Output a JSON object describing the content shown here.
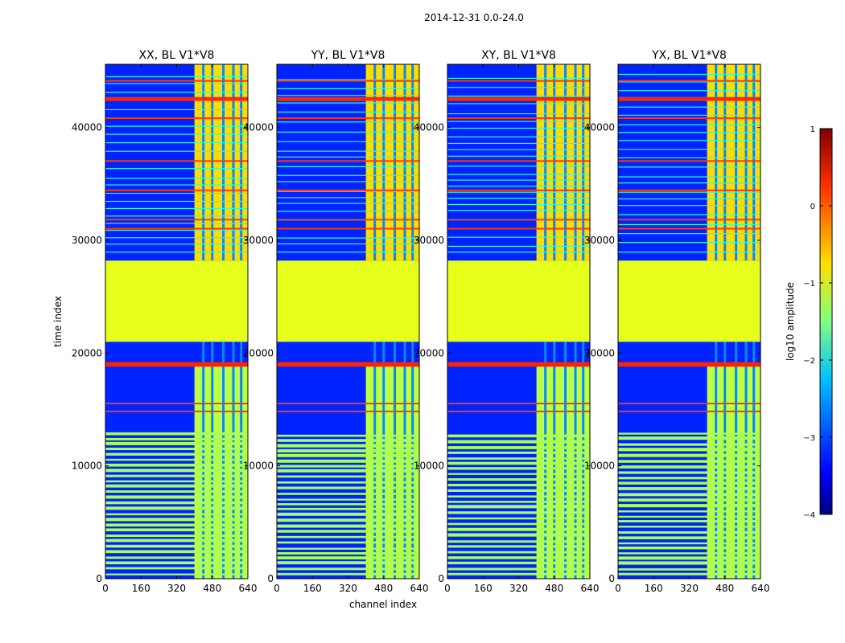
{
  "figure": {
    "suptitle": "2014-12-31 0.0-24.0"
  },
  "chart_data": {
    "type": "heatmap",
    "shared": {
      "xlabel": "channel index",
      "ylabel": "time index",
      "x_ticks": [
        0,
        160,
        320,
        480,
        640
      ],
      "y_ticks": [
        0,
        10000,
        20000,
        30000,
        40000
      ],
      "xlim": [
        0,
        640
      ],
      "ylim": [
        0,
        45600
      ]
    },
    "panels": [
      {
        "title": "XX, BL V1*V8",
        "polarization": "XX"
      },
      {
        "title": "YY, BL V1*V8",
        "polarization": "YY"
      },
      {
        "title": "XY, BL V1*V8",
        "polarization": "XY"
      },
      {
        "title": "YX, BL V1*V8",
        "polarization": "YX"
      }
    ],
    "features": {
      "flagged_block_time": [
        21000,
        28200
      ],
      "flagged_block_log10_amp": -1.0,
      "rfi_band_time": [
        18800,
        19200
      ],
      "rfi_band_log10_amp": 0.2,
      "bright_channel_range": [
        400,
        640
      ],
      "background_log10_amp": -3.2
    },
    "colorbar": {
      "label": "log10 amplitude",
      "range": [
        -4,
        1
      ],
      "ticks": [
        "1",
        "0",
        "−1",
        "−2",
        "−3",
        "−4"
      ],
      "colormap": "jet"
    }
  }
}
